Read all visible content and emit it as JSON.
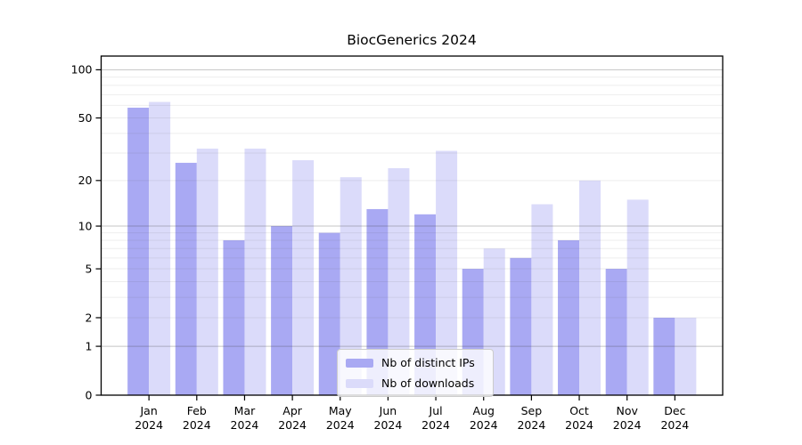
{
  "chart_data": {
    "type": "bar",
    "title": "BiocGenerics 2024",
    "year": "2024",
    "months": [
      "Jan",
      "Feb",
      "Mar",
      "Apr",
      "May",
      "Jun",
      "Jul",
      "Aug",
      "Sep",
      "Oct",
      "Nov",
      "Dec"
    ],
    "series": [
      {
        "name": "Nb of distinct IPs",
        "color": "#a9a9f3",
        "values": [
          58,
          26,
          8,
          10,
          9,
          13,
          12,
          5,
          6,
          8,
          5,
          2
        ]
      },
      {
        "name": "Nb of downloads",
        "color": "#dbdbfa",
        "values": [
          63,
          32,
          32,
          27,
          21,
          24,
          31,
          7,
          14,
          20,
          15,
          2
        ]
      }
    ],
    "xlabel": "",
    "ylabel": "",
    "yscale": "log1p",
    "ylim": [
      0,
      122
    ],
    "y_tick_values": [
      0,
      1,
      2,
      5,
      10,
      20,
      50,
      100
    ],
    "y_major_gridlines": [
      1,
      10,
      100
    ],
    "y_minor_gridlines": [
      2,
      3,
      4,
      5,
      6,
      7,
      8,
      9,
      20,
      30,
      40,
      50,
      60,
      70,
      80,
      90
    ],
    "grid": "horizontal",
    "legend_position": "lower center"
  }
}
